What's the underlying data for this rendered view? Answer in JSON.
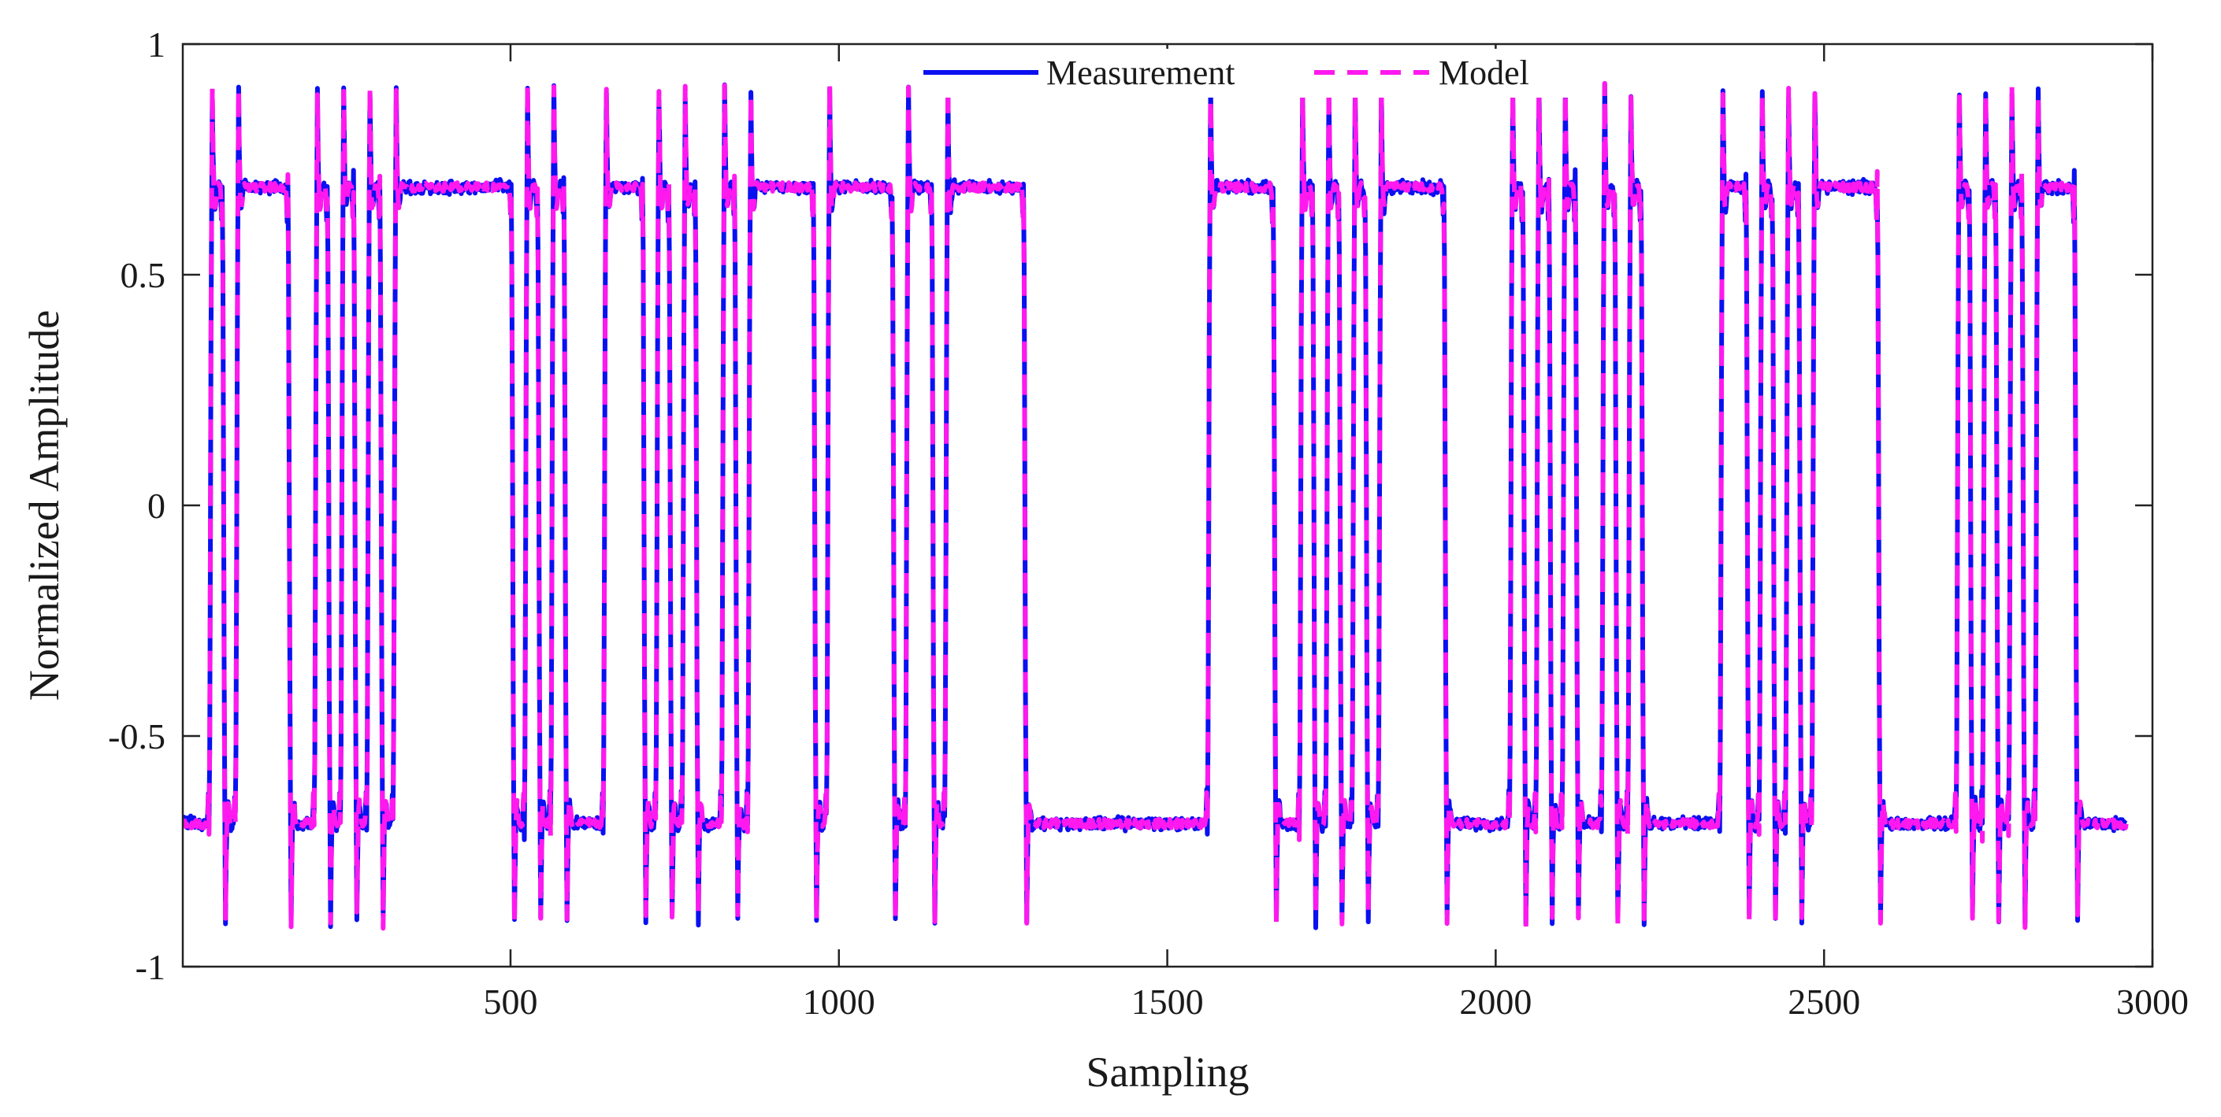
{
  "chart_data": {
    "type": "line",
    "title": "",
    "xlabel": "Sampling",
    "ylabel": "Normalized Amplitude",
    "xlim": [
      1,
      3000
    ],
    "ylim": [
      -1,
      1
    ],
    "xticks": [
      500,
      1000,
      1500,
      2000,
      2500,
      3000
    ],
    "xtick_labels": [
      "500",
      "1000",
      "1500",
      "2000",
      "2500",
      "3000"
    ],
    "yticks": [
      -1,
      -0.5,
      0,
      0.5,
      1
    ],
    "ytick_labels": [
      "-1",
      "-0.5",
      "0",
      "0.5",
      "1"
    ],
    "grid": false,
    "legend_position": "top-center",
    "symbol_levels": [
      -0.69,
      0.69
    ],
    "symbol_length": 20,
    "symbols": [
      -1,
      -1,
      1,
      -1,
      1,
      1,
      1,
      1,
      -1,
      -1,
      1,
      -1,
      1,
      -1,
      1,
      -1,
      1,
      1,
      1,
      1,
      1,
      1,
      1,
      1,
      1,
      -1,
      1,
      -1,
      1,
      -1,
      -1,
      -1,
      1,
      1,
      1,
      -1,
      1,
      -1,
      1,
      -1,
      -1,
      1,
      -1,
      1,
      1,
      1,
      1,
      1,
      -1,
      1,
      1,
      1,
      1,
      1,
      -1,
      1,
      1,
      -1,
      1,
      1,
      1,
      1,
      1,
      1,
      -1,
      -1,
      -1,
      -1,
      -1,
      -1,
      -1,
      -1,
      -1,
      -1,
      -1,
      -1,
      -1,
      -1,
      1,
      1,
      1,
      1,
      1,
      -1,
      -1,
      1,
      -1,
      1,
      -1,
      1,
      -1,
      1,
      1,
      1,
      1,
      1,
      -1,
      -1,
      -1,
      -1,
      -1,
      1,
      -1,
      1,
      -1,
      1,
      -1,
      -1,
      1,
      -1,
      1,
      -1,
      -1,
      -1,
      -1,
      -1,
      -1,
      1,
      1,
      -1,
      1,
      -1,
      1,
      -1,
      1,
      1,
      1,
      1,
      1,
      -1,
      -1,
      -1,
      -1,
      -1,
      -1,
      1,
      -1,
      1,
      -1,
      1,
      -1,
      1,
      1,
      1,
      -1,
      -1,
      -1,
      -1
    ],
    "series": [
      {
        "name": "Measurement",
        "color": "#0a10f0",
        "style": "solid"
      },
      {
        "name": "Model",
        "color": "#ff19ee",
        "style": "dashed"
      }
    ]
  }
}
